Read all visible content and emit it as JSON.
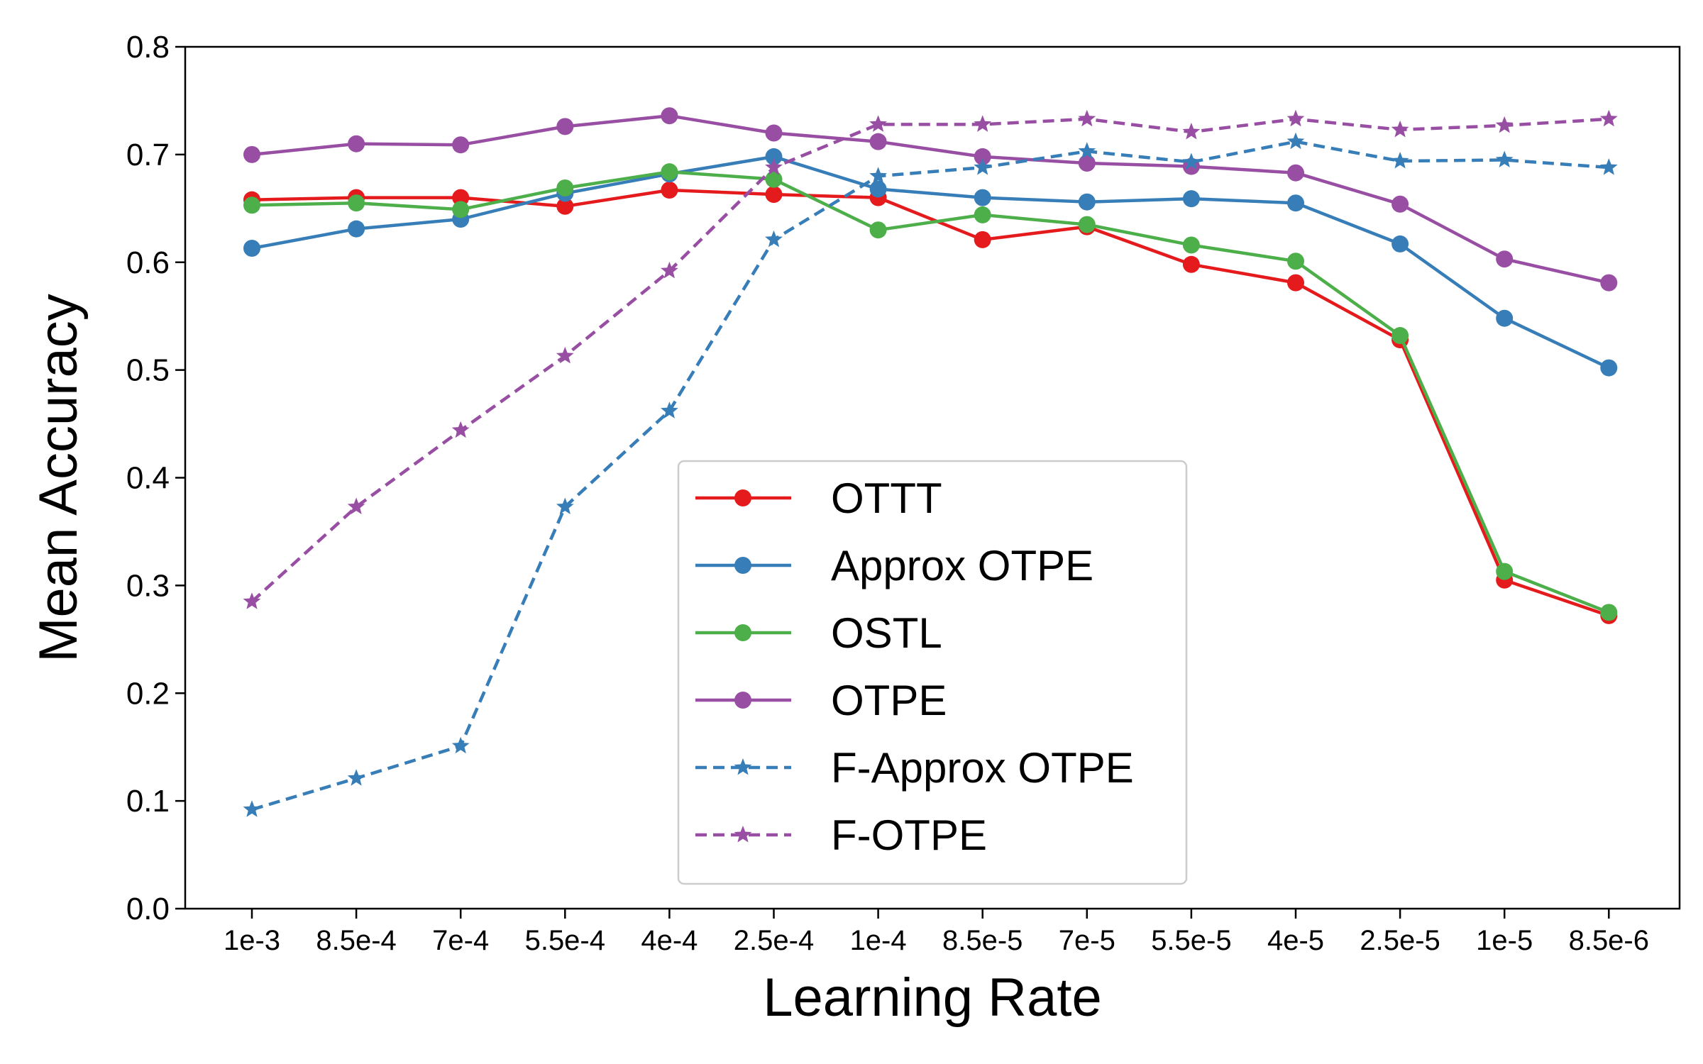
{
  "chart_data": {
    "type": "line",
    "title": "",
    "xlabel": "Learning Rate",
    "ylabel": "Mean Accuracy",
    "ylim": [
      0.0,
      0.8
    ],
    "yticks": [
      "0.0",
      "0.1",
      "0.2",
      "0.3",
      "0.4",
      "0.5",
      "0.6",
      "0.7",
      "0.8"
    ],
    "categories": [
      "1e-3",
      "8.5e-4",
      "7e-4",
      "5.5e-4",
      "4e-4",
      "2.5e-4",
      "1e-4",
      "8.5e-5",
      "7e-5",
      "5.5e-5",
      "4e-5",
      "2.5e-5",
      "1e-5",
      "8.5e-6"
    ],
    "grid": false,
    "legend_position": "lower-center",
    "series": [
      {
        "name": "OTTT",
        "color": "#e41a1c",
        "style": "solid",
        "marker": "circle",
        "values": [
          0.658,
          0.66,
          0.66,
          0.652,
          0.667,
          0.663,
          0.66,
          0.621,
          0.633,
          0.598,
          0.581,
          0.528,
          0.305,
          0.272
        ]
      },
      {
        "name": "Approx OTPE",
        "color": "#377eb8",
        "style": "solid",
        "marker": "circle",
        "values": [
          0.613,
          0.631,
          0.64,
          0.664,
          0.682,
          0.698,
          0.668,
          0.66,
          0.656,
          0.659,
          0.655,
          0.617,
          0.548,
          0.502
        ]
      },
      {
        "name": "OSTL",
        "color": "#4daf4a",
        "style": "solid",
        "marker": "circle",
        "values": [
          0.653,
          0.655,
          0.649,
          0.669,
          0.684,
          0.677,
          0.63,
          0.644,
          0.635,
          0.616,
          0.601,
          0.532,
          0.313,
          0.275
        ]
      },
      {
        "name": "OTPE",
        "color": "#984ea3",
        "style": "solid",
        "marker": "circle",
        "values": [
          0.7,
          0.71,
          0.709,
          0.726,
          0.736,
          0.72,
          0.712,
          0.698,
          0.692,
          0.689,
          0.683,
          0.654,
          0.603,
          0.581
        ]
      },
      {
        "name": "F-Approx OTPE",
        "color": "#377eb8",
        "style": "dashed",
        "marker": "star",
        "values": [
          0.092,
          0.121,
          0.151,
          0.373,
          0.462,
          0.621,
          0.68,
          0.688,
          0.703,
          0.693,
          0.712,
          0.694,
          0.695,
          0.688
        ]
      },
      {
        "name": "F-OTPE",
        "color": "#984ea3",
        "style": "dashed",
        "marker": "star",
        "values": [
          0.285,
          0.373,
          0.444,
          0.513,
          0.592,
          0.688,
          0.728,
          0.728,
          0.733,
          0.721,
          0.733,
          0.723,
          0.727,
          0.733
        ]
      }
    ]
  }
}
